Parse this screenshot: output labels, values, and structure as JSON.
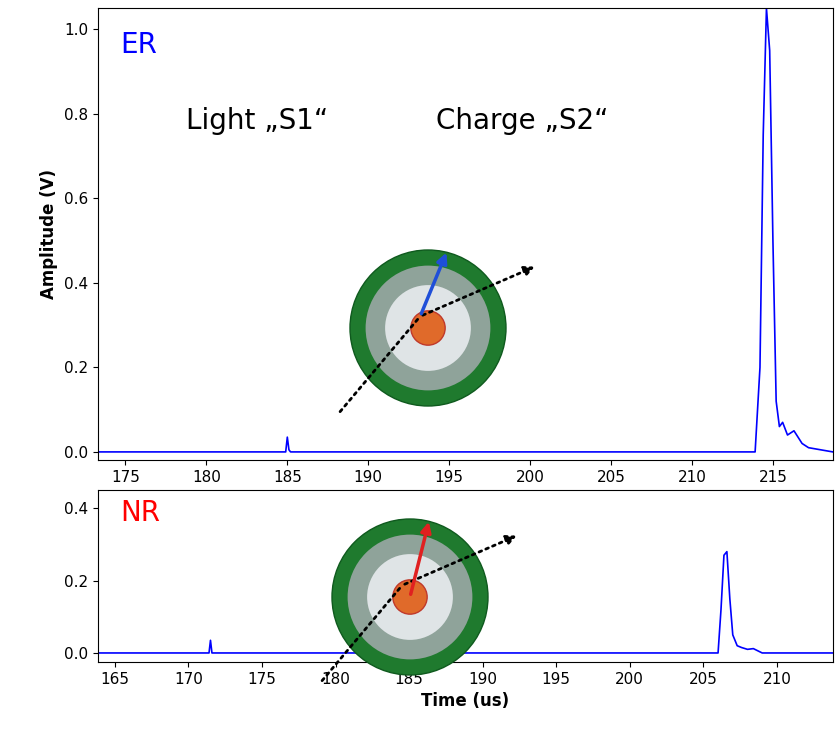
{
  "chart_data": [
    {
      "type": "line",
      "title": "ER",
      "ylabel": "Amplitude (V)",
      "annotations": [
        "Light „S1“",
        "Charge „S2“"
      ],
      "xlim": [
        173.3,
        218.7
      ],
      "xticks": [
        175,
        180,
        185,
        190,
        195,
        200,
        205,
        210,
        215
      ],
      "ylim": [
        -0.019,
        1.05
      ],
      "yticks": [
        0.0,
        0.2,
        0.4,
        0.6,
        0.8,
        1.0
      ],
      "series": [
        {
          "name": "ER",
          "color": "#0000ff",
          "x": [
            173.3,
            184.9,
            185.0,
            185.1,
            185.2,
            213.9,
            214.2,
            214.4,
            214.6,
            214.8,
            215.0,
            215.2,
            215.4,
            215.6,
            215.9,
            216.3,
            216.8,
            217.2,
            218.7
          ],
          "values": [
            0,
            0,
            0.035,
            0.005,
            0,
            0,
            0.2,
            0.75,
            1.05,
            0.95,
            0.5,
            0.12,
            0.06,
            0.07,
            0.04,
            0.05,
            0.02,
            0.01,
            0
          ]
        }
      ]
    },
    {
      "type": "line",
      "title": "NR",
      "xlabel": "Time (us)",
      "xlim": [
        163.85,
        213.8
      ],
      "xticks": [
        165,
        170,
        175,
        180,
        185,
        190,
        195,
        200,
        205,
        210
      ],
      "ylim": [
        -0.025,
        0.45
      ],
      "yticks": [
        0.0,
        0.2,
        0.4
      ],
      "series": [
        {
          "name": "NR",
          "color": "#0000ff",
          "x": [
            163.85,
            171.4,
            171.5,
            171.6,
            206.0,
            206.2,
            206.4,
            206.6,
            206.8,
            207.0,
            207.3,
            207.6,
            208.0,
            208.4,
            209.0,
            213.8
          ],
          "values": [
            0,
            0,
            0.035,
            0,
            0,
            0.12,
            0.27,
            0.28,
            0.15,
            0.05,
            0.02,
            0.015,
            0.01,
            0.012,
            0,
            0
          ]
        }
      ]
    }
  ]
}
